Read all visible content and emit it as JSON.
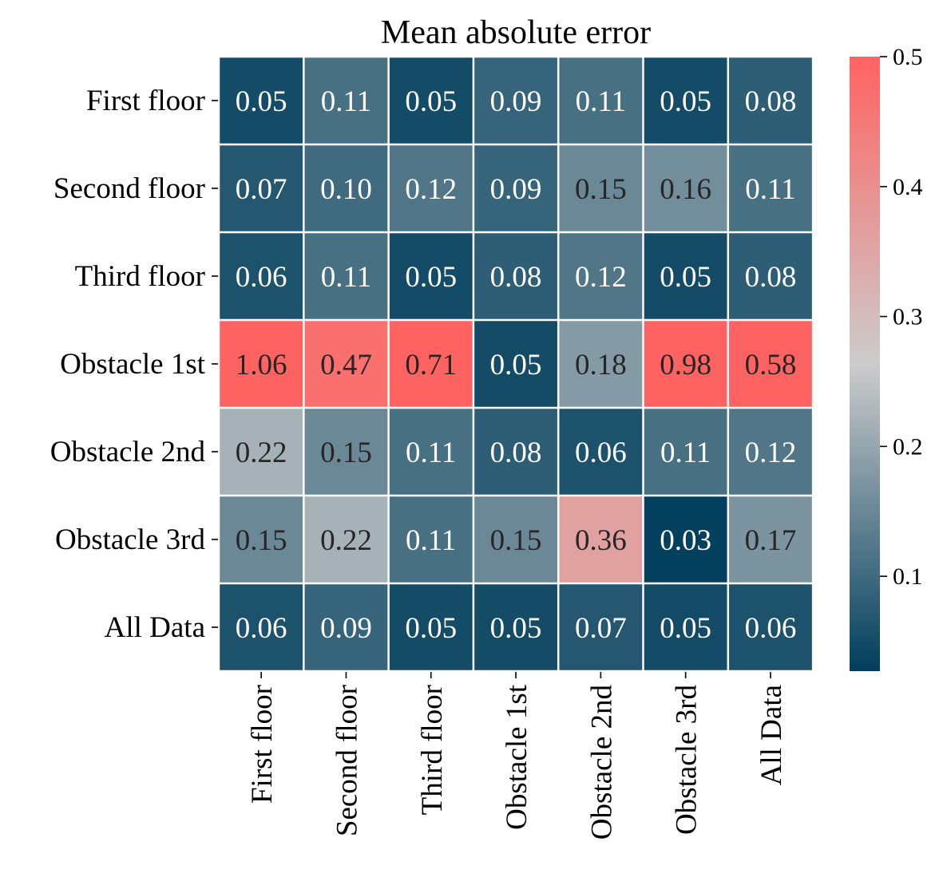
{
  "chart_data": {
    "type": "heatmap",
    "title": "Mean absolute error",
    "xlabel": "",
    "ylabel": "",
    "rows": [
      "First floor",
      "Second floor",
      "Third floor",
      "Obstacle 1st",
      "Obstacle 2nd",
      "Obstacle 3rd",
      "All Data"
    ],
    "columns": [
      "First floor",
      "Second floor",
      "Third floor",
      "Obstacle 1st",
      "Obstacle 2nd",
      "Obstacle 3rd",
      "All Data"
    ],
    "values": [
      [
        "0.05",
        "0.11",
        "0.05",
        "0.09",
        "0.11",
        "0.05",
        "0.08"
      ],
      [
        "0.07",
        "0.10",
        "0.12",
        "0.09",
        "0.15",
        "0.16",
        "0.11"
      ],
      [
        "0.06",
        "0.11",
        "0.05",
        "0.08",
        "0.12",
        "0.05",
        "0.08"
      ],
      [
        "1.06",
        "0.47",
        "0.71",
        "0.05",
        "0.18",
        "0.98",
        "0.58"
      ],
      [
        "0.22",
        "0.15",
        "0.11",
        "0.08",
        "0.06",
        "0.11",
        "0.12"
      ],
      [
        "0.15",
        "0.22",
        "0.11",
        "0.15",
        "0.36",
        "0.03",
        "0.17"
      ],
      [
        "0.06",
        "0.09",
        "0.05",
        "0.05",
        "0.07",
        "0.05",
        "0.06"
      ]
    ],
    "colorbar": {
      "min": 0.027,
      "max": 0.5,
      "ticks": [
        "0.1",
        "0.2",
        "0.3",
        "0.4",
        "0.5"
      ],
      "colors": [
        "#003e5c",
        "#cccccc",
        "#ff6361"
      ]
    },
    "grid": false,
    "annot_colors": {
      "light": "#ffffff",
      "dark": "#262626"
    }
  }
}
